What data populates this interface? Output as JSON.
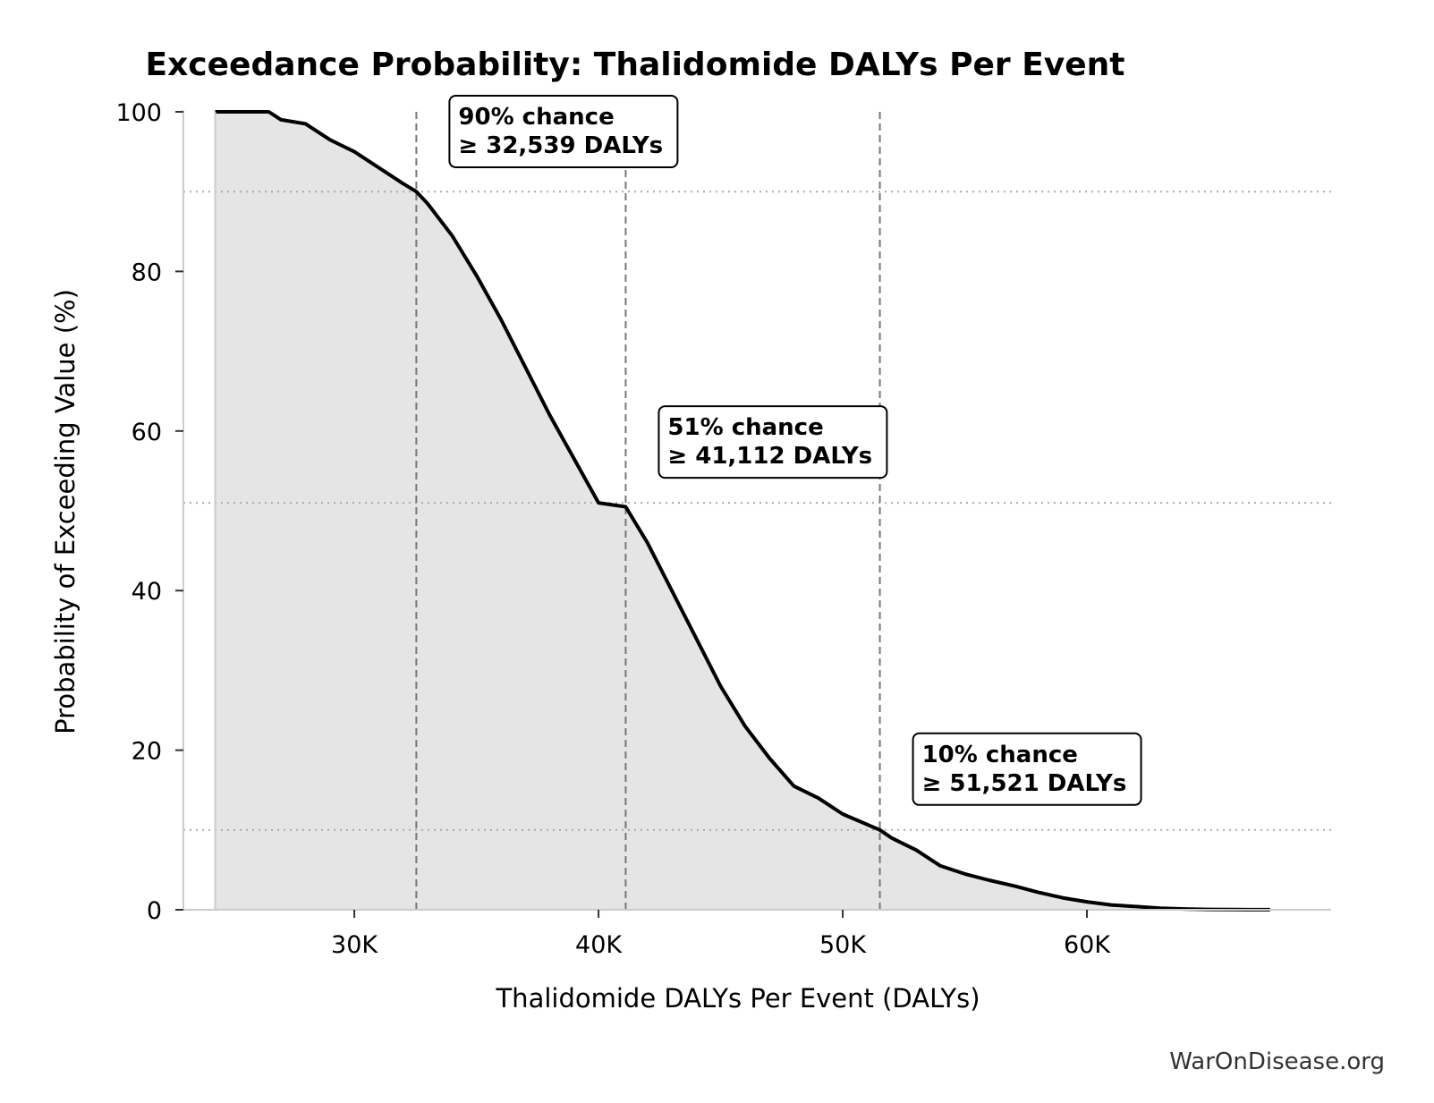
{
  "chart_data": {
    "type": "area",
    "title": "Exceedance Probability: Thalidomide DALYs Per Event",
    "xlabel": "Thalidomide DALYs Per Event (DALYs)",
    "ylabel": "Probability of Exceeding Value (%)",
    "xlim": [
      23000,
      70000
    ],
    "ylim": [
      0,
      100
    ],
    "x_ticks": [
      {
        "value": 30000,
        "label": "30K"
      },
      {
        "value": 40000,
        "label": "40K"
      },
      {
        "value": 50000,
        "label": "50K"
      },
      {
        "value": 60000,
        "label": "60K"
      }
    ],
    "y_ticks": [
      {
        "value": 0,
        "label": "0"
      },
      {
        "value": 20,
        "label": "20"
      },
      {
        "value": 40,
        "label": "40"
      },
      {
        "value": 60,
        "label": "60"
      },
      {
        "value": 80,
        "label": "80"
      },
      {
        "value": 100,
        "label": "100"
      }
    ],
    "series": [
      {
        "x": [
          24300,
          26500,
          27000,
          28000,
          29000,
          30000,
          31000,
          32000,
          32539,
          33000,
          34000,
          35000,
          36000,
          37000,
          38000,
          39000,
          40000,
          41112,
          42000,
          43000,
          44000,
          45000,
          46000,
          47000,
          48000,
          49000,
          50000,
          51521,
          52000,
          53000,
          54000,
          55000,
          56000,
          57000,
          58000,
          59000,
          60000,
          61000,
          62000,
          63000,
          64000,
          65000,
          66000,
          67500
        ],
        "y": [
          100,
          100,
          99,
          98.5,
          96.5,
          95,
          93,
          91,
          90,
          88.5,
          84.5,
          79.5,
          74,
          68,
          62,
          56.5,
          51,
          50.5,
          46,
          40,
          34,
          28,
          23,
          19,
          15.5,
          14,
          12,
          10,
          9,
          7.5,
          5.5,
          4.5,
          3.7,
          3,
          2.2,
          1.5,
          1,
          0.6,
          0.4,
          0.2,
          0.1,
          0.05,
          0.02,
          0.01
        ]
      }
    ],
    "reference_lines": [
      {
        "x": 32539,
        "y": 90
      },
      {
        "x": 41112,
        "y": 51
      },
      {
        "x": 51521,
        "y": 10
      }
    ],
    "annotations": [
      {
        "line1": "90% chance",
        "line2": "≥ 32,539 DALYs",
        "x": 32539,
        "y": 90
      },
      {
        "line1": "51% chance",
        "line2": "≥ 41,112 DALYs",
        "x": 41112,
        "y": 51
      },
      {
        "line1": "10% chance",
        "line2": "≥ 51,521 DALYs",
        "x": 51521,
        "y": 10
      }
    ],
    "colors": {
      "line": "#000000",
      "fill": "#e5e5e5",
      "ref_line": "#777777",
      "grid": "#aaaaaa"
    },
    "grid": false,
    "legend": "none"
  },
  "watermark": "WarOnDisease.org"
}
